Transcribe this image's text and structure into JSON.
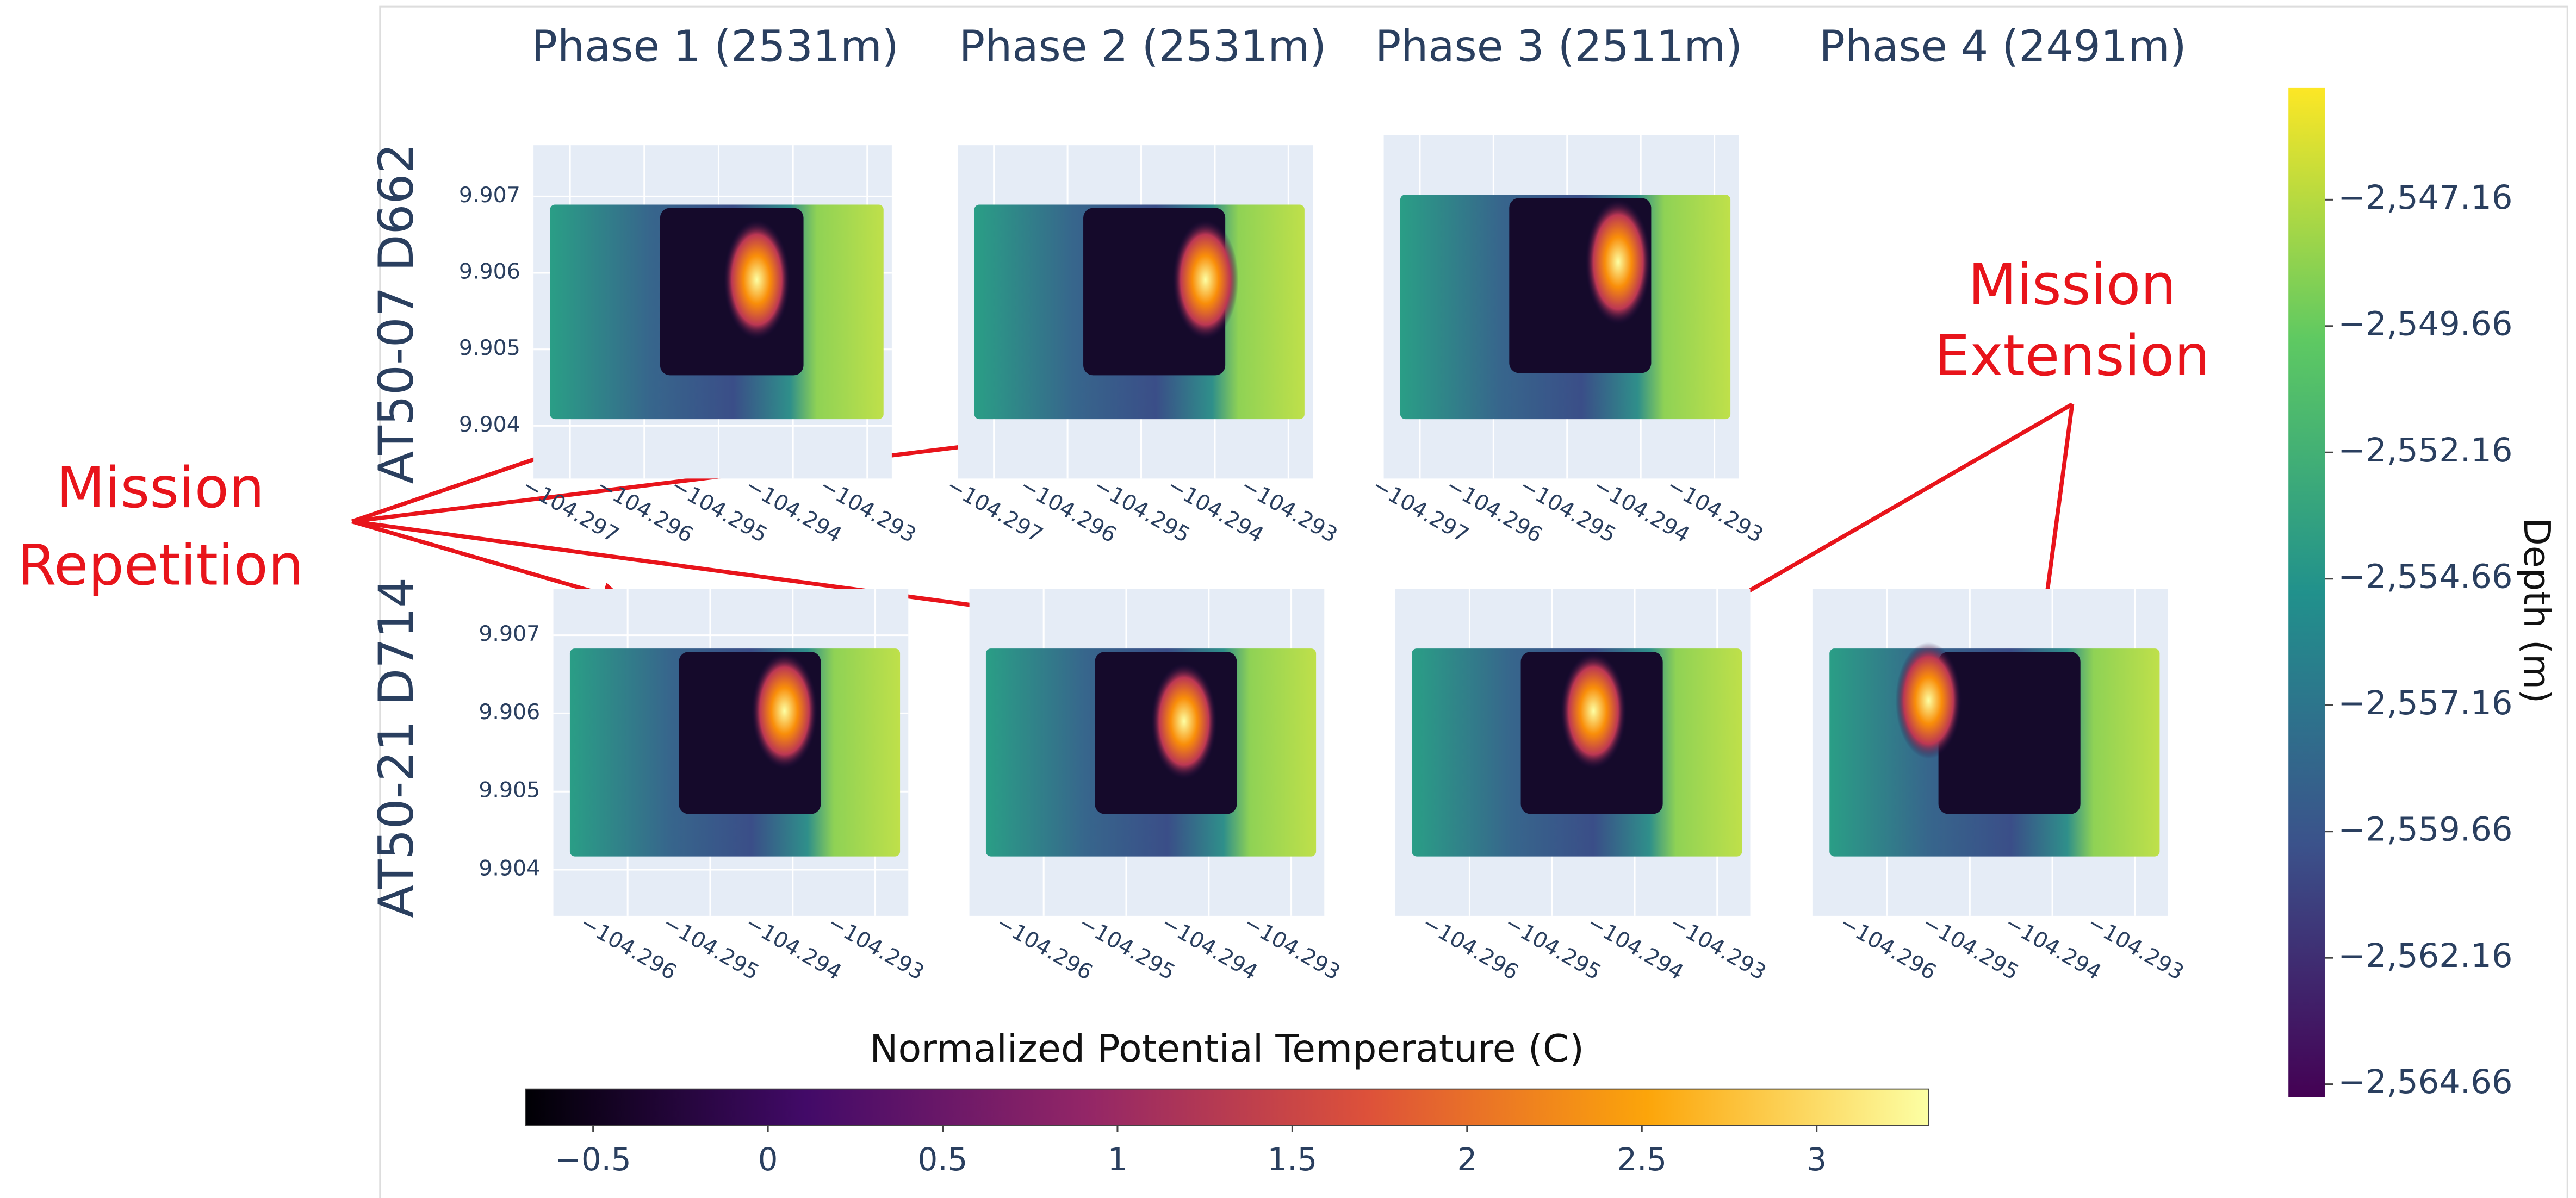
{
  "column_titles": [
    "Phase 1 (2531m)",
    "Phase 2 (2531m)",
    "Phase 3 (2511m)",
    "Phase 4 (2491m)"
  ],
  "row_labels": [
    "AT50-07 D662",
    "AT50-21 D714"
  ],
  "panels": [
    [
      {
        "xlim": [
          -104.29749,
          -104.29267
        ],
        "ylim": [
          9.90331,
          9.90767
        ],
        "xticks": [
          {
            "value": -104.297,
            "label": "−104.297"
          },
          {
            "value": -104.296,
            "label": "−104.296"
          },
          {
            "value": -104.295,
            "label": "−104.295"
          },
          {
            "value": -104.294,
            "label": "−104.294"
          },
          {
            "value": -104.293,
            "label": "−104.293"
          }
        ],
        "yticks": [
          9.904,
          9.905,
          9.906,
          9.907
        ]
      },
      {
        "xlim": [
          -104.29749,
          -104.29267
        ],
        "ylim": [
          9.90331,
          9.90767
        ],
        "xticks": [
          {
            "value": -104.297,
            "label": "−104.297"
          },
          {
            "value": -104.296,
            "label": "−104.296"
          },
          {
            "value": -104.295,
            "label": "−104.295"
          },
          {
            "value": -104.294,
            "label": "−104.294"
          },
          {
            "value": -104.293,
            "label": "−104.293"
          }
        ]
      },
      {
        "xlim": [
          -104.29749,
          -104.29267
        ],
        "ylim": [
          9.90331,
          9.90767
        ],
        "xticks": [
          {
            "value": -104.297,
            "label": "−104.297"
          },
          {
            "value": -104.296,
            "label": "−104.296"
          },
          {
            "value": -104.295,
            "label": "−104.295"
          },
          {
            "value": -104.294,
            "label": "−104.294"
          },
          {
            "value": -104.293,
            "label": "−104.293"
          }
        ]
      }
    ],
    [
      {
        "xlim": [
          -104.2969,
          -104.2926
        ],
        "ylim": [
          9.90341,
          9.90759
        ],
        "xticks": [
          {
            "value": -104.296,
            "label": "−104.296"
          },
          {
            "value": -104.295,
            "label": "−104.295"
          },
          {
            "value": -104.294,
            "label": "−104.294"
          },
          {
            "value": -104.293,
            "label": "−104.293"
          }
        ],
        "yticks": [
          9.904,
          9.905,
          9.906,
          9.907
        ]
      },
      {
        "xlim": [
          -104.2969,
          -104.2926
        ],
        "ylim": [
          9.90341,
          9.90759
        ],
        "xticks": [
          {
            "value": -104.296,
            "label": "−104.296"
          },
          {
            "value": -104.295,
            "label": "−104.295"
          },
          {
            "value": -104.294,
            "label": "−104.294"
          },
          {
            "value": -104.293,
            "label": "−104.293"
          }
        ]
      },
      {
        "xlim": [
          -104.2969,
          -104.2926
        ],
        "ylim": [
          9.90341,
          9.90759
        ],
        "xticks": [
          {
            "value": -104.296,
            "label": "−104.296"
          },
          {
            "value": -104.295,
            "label": "−104.295"
          },
          {
            "value": -104.294,
            "label": "−104.294"
          },
          {
            "value": -104.293,
            "label": "−104.293"
          }
        ]
      },
      {
        "xlim": [
          -104.2969,
          -104.2926
        ],
        "ylim": [
          9.90341,
          9.90759
        ],
        "xticks": [
          {
            "value": -104.296,
            "label": "−104.296"
          },
          {
            "value": -104.295,
            "label": "−104.295"
          },
          {
            "value": -104.294,
            "label": "−104.294"
          },
          {
            "value": -104.293,
            "label": "−104.293"
          }
        ]
      }
    ]
  ],
  "temperature_colorbar": {
    "title": "Normalized Potential Temperature (C)",
    "lim": [
      -0.694,
      3.32
    ],
    "ticks": [
      {
        "value": -0.5,
        "label": "−0.5"
      },
      0,
      0.5,
      1,
      1.5,
      2,
      2.5,
      3
    ]
  },
  "depth_colorbar": {
    "title": "Depth (m)",
    "lim": [
      -2564.92,
      -2544.94
    ],
    "ticks": [
      {
        "value": -2547.16,
        "label": "−2,547.16"
      },
      {
        "value": -2549.66,
        "label": "−2,549.66"
      },
      {
        "value": -2552.16,
        "label": "−2,552.16"
      },
      {
        "value": -2554.66,
        "label": "−2,554.66"
      },
      {
        "value": -2557.16,
        "label": "−2,557.16"
      },
      {
        "value": -2559.66,
        "label": "−2,559.66"
      },
      {
        "value": -2562.16,
        "label": "−2,562.16"
      },
      {
        "value": -2564.66,
        "label": "−2,564.66"
      }
    ]
  },
  "annotations": {
    "mission_repetition": [
      "Mission",
      "Repetition"
    ],
    "mission_extension": [
      "Mission",
      "Extension"
    ]
  }
}
